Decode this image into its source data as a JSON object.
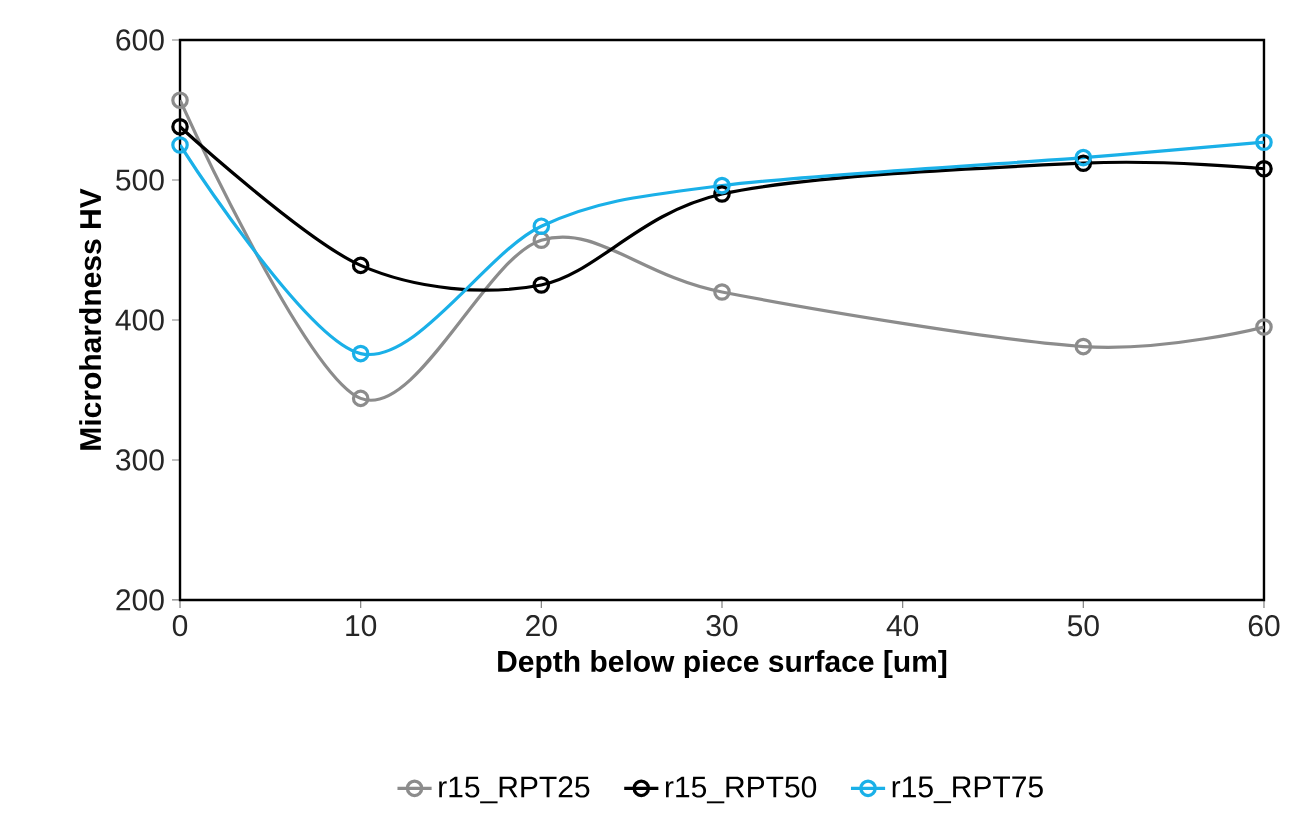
{
  "chart_data": {
    "type": "line",
    "xlabel": "Depth below piece surface [um]",
    "ylabel": "Microhardness HV",
    "xlim": [
      0,
      60
    ],
    "xticks": [
      0,
      10,
      20,
      30,
      40,
      50,
      60
    ],
    "ylim": [
      200,
      600
    ],
    "yticks": [
      200,
      300,
      400,
      500,
      600
    ],
    "x": [
      0,
      10,
      20,
      30,
      50,
      60
    ],
    "marker": "circle",
    "legend": "bottom",
    "grid": false,
    "series": [
      {
        "name": "r15_RPT25",
        "color": "#8c8c8c",
        "values": [
          557,
          344,
          457,
          420,
          381,
          395
        ]
      },
      {
        "name": "r15_RPT50",
        "color": "#000000",
        "values": [
          538,
          439,
          425,
          490,
          512,
          508
        ]
      },
      {
        "name": "r15_RPT75",
        "color": "#1ab0e8",
        "values": [
          525,
          376,
          467,
          496,
          516,
          527
        ]
      }
    ]
  }
}
